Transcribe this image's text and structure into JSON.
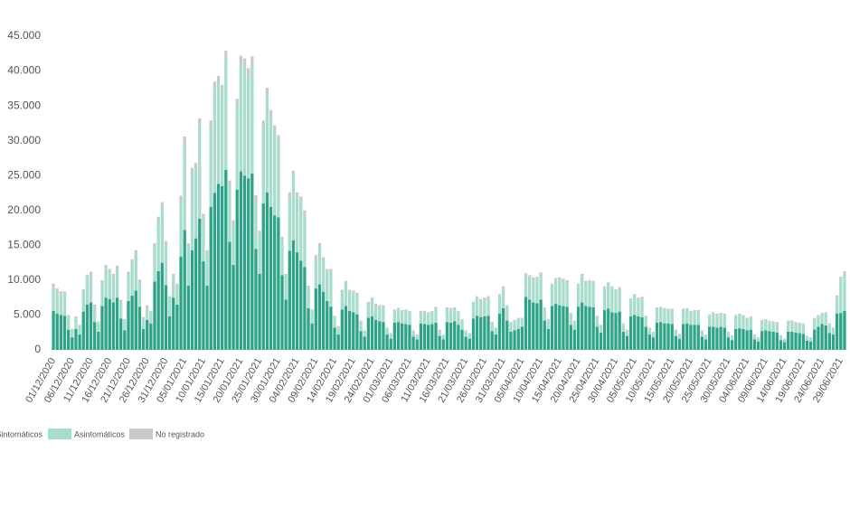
{
  "chart_data": {
    "type": "stacked_bar",
    "categories": [
      "01/12/2020",
      null,
      null,
      null,
      null,
      "06/12/2020",
      null,
      null,
      null,
      null,
      "11/12/2020",
      null,
      null,
      null,
      null,
      "16/12/2020",
      null,
      null,
      null,
      null,
      "21/12/2020",
      null,
      null,
      null,
      null,
      "26/12/2020",
      null,
      null,
      null,
      null,
      "31/12/2020",
      null,
      null,
      null,
      null,
      "05/01/2021",
      null,
      null,
      null,
      null,
      "10/01/2021",
      null,
      null,
      null,
      null,
      "15/01/2021",
      null,
      null,
      null,
      null,
      "20/01/2021",
      null,
      null,
      null,
      null,
      "25/01/2021",
      null,
      null,
      null,
      null,
      "30/01/2021",
      null,
      null,
      null,
      null,
      "04/02/2021",
      null,
      null,
      null,
      null,
      "09/02/2021",
      null,
      null,
      null,
      null,
      "14/02/2021",
      null,
      null,
      null,
      null,
      "19/02/2021",
      null,
      null,
      null,
      null,
      "24/02/2021",
      null,
      null,
      null,
      null,
      "01/03/2021",
      null,
      null,
      null,
      null,
      "06/03/2021",
      null,
      null,
      null,
      null,
      "11/03/2021",
      null,
      null,
      null,
      null,
      "16/03/2021",
      null,
      null,
      null,
      null,
      "21/03/2021",
      null,
      null,
      null,
      null,
      "26/03/2021",
      null,
      null,
      null,
      null,
      "31/03/2021",
      null,
      null,
      null,
      null,
      "05/04/2021",
      null,
      null,
      null,
      null,
      "10/04/2021",
      null,
      null,
      null,
      null,
      "15/04/2021",
      null,
      null,
      null,
      null,
      "20/04/2021",
      null,
      null,
      null,
      null,
      "25/04/2021",
      null,
      null,
      null,
      null,
      "30/04/2021",
      null,
      null,
      null,
      null,
      "05/05/2021",
      null,
      null,
      null,
      null,
      "10/05/2021",
      null,
      null,
      null,
      null,
      "15/05/2021",
      null,
      null,
      null,
      null,
      "20/05/2021",
      null,
      null,
      null,
      null,
      "25/05/2021",
      null,
      null,
      null,
      null,
      "30/05/2021",
      null,
      null,
      null,
      null,
      "04/06/2021",
      null,
      null,
      null,
      null,
      "09/06/2021",
      null,
      null,
      null,
      null,
      "14/06/2021",
      null,
      null,
      null,
      null,
      "19/06/2021",
      null,
      null,
      null,
      null,
      "24/06/2021",
      null,
      null,
      null,
      null,
      "29/06/2021",
      null
    ],
    "series": [
      {
        "name": "Sintomáticos",
        "color": "#2ea387",
        "values": [
          5600,
          5200,
          5000,
          4900,
          2900,
          1800,
          3000,
          2200,
          5500,
          6500,
          6800,
          4000,
          2600,
          6300,
          7500,
          7300,
          6800,
          7500,
          4500,
          2800,
          7000,
          7800,
          8500,
          6200,
          3000,
          4300,
          3800,
          9800,
          11300,
          12500,
          9300,
          4800,
          7500,
          6500,
          13400,
          17200,
          9200,
          14300,
          16000,
          18800,
          12700,
          9200,
          20500,
          22500,
          23800,
          23500,
          25800,
          15500,
          12200,
          23000,
          25600,
          25000,
          24600,
          25300,
          14500,
          10900,
          21000,
          22600,
          20500,
          19300,
          19000,
          10700,
          7200,
          14200,
          15700,
          14000,
          12800,
          11900,
          6000,
          3800,
          8800,
          9400,
          8300,
          7000,
          6200,
          3200,
          2200,
          5800,
          6300,
          5600,
          5400,
          5100,
          2700,
          1900,
          4600,
          4800,
          4300,
          4100,
          4000,
          2200,
          1600,
          3900,
          4000,
          3800,
          3700,
          3600,
          1900,
          1500,
          3800,
          3700,
          3600,
          3700,
          3900,
          2000,
          1500,
          4000,
          3900,
          4100,
          3600,
          2900,
          1900,
          1600,
          4500,
          4900,
          4700,
          4800,
          4900,
          2700,
          2200,
          5200,
          6000,
          4200,
          2600,
          2800,
          3000,
          3300,
          7600,
          7200,
          6800,
          6700,
          7200,
          4200,
          3000,
          6300,
          6600,
          6400,
          6300,
          6200,
          3600,
          2900,
          6200,
          6800,
          6300,
          6200,
          6100,
          3300,
          2500,
          5700,
          5900,
          5400,
          5300,
          5500,
          2600,
          2000,
          4800,
          5000,
          4800,
          4700,
          3300,
          2200,
          1800,
          3900,
          4000,
          3800,
          3800,
          3700,
          2000,
          1600,
          3700,
          3800,
          3600,
          3600,
          3600,
          1900,
          1500,
          3300,
          3300,
          3200,
          3300,
          3200,
          1800,
          1400,
          3000,
          3100,
          3000,
          2800,
          2900,
          1500,
          1200,
          2700,
          2800,
          2700,
          2600,
          2500,
          1400,
          1100,
          2600,
          2600,
          2500,
          2400,
          2300,
          1300,
          1200,
          2900,
          3300,
          3700,
          3500,
          2400,
          2200,
          5200,
          5300,
          5600
        ]
      },
      {
        "name": "Asintomáticos",
        "color": "#a8dccc",
        "values": [
          3400,
          3200,
          3000,
          3100,
          1800,
          1000,
          1500,
          1200,
          2800,
          3800,
          3900,
          2200,
          1300,
          3300,
          4200,
          3800,
          3600,
          4100,
          2400,
          1400,
          3700,
          4700,
          5200,
          3500,
          1500,
          1800,
          1600,
          5000,
          7200,
          8000,
          5700,
          2600,
          3000,
          2700,
          8000,
          12500,
          5600,
          11000,
          10000,
          13500,
          6200,
          4600,
          11500,
          15000,
          14500,
          13500,
          16000,
          8000,
          5800,
          12000,
          15500,
          15700,
          14800,
          15700,
          7000,
          5600,
          11000,
          14000,
          13000,
          12000,
          11000,
          5000,
          3300,
          7800,
          9300,
          8000,
          8600,
          7600,
          2900,
          1800,
          4400,
          5400,
          4600,
          4200,
          5000,
          1500,
          1000,
          2500,
          3200,
          2700,
          2800,
          2800,
          1300,
          800,
          2000,
          2400,
          2000,
          2000,
          2100,
          900,
          700,
          1700,
          1800,
          1700,
          1900,
          1800,
          800,
          600,
          1600,
          1700,
          1600,
          1700,
          2100,
          800,
          600,
          1900,
          1900,
          1800,
          1800,
          1300,
          800,
          700,
          2100,
          2500,
          2300,
          2400,
          2500,
          1100,
          900,
          2500,
          2800,
          2000,
          1200,
          1300,
          1400,
          1100,
          3100,
          3200,
          3300,
          3500,
          3600,
          1700,
          1200,
          2900,
          3400,
          3700,
          3600,
          3500,
          1500,
          1100,
          3000,
          3800,
          3300,
          3500,
          3500,
          1400,
          1000,
          3100,
          3500,
          3400,
          3100,
          3200,
          1000,
          800,
          2300,
          2700,
          2400,
          2600,
          1400,
          900,
          700,
          2000,
          2000,
          2000,
          1900,
          2000,
          800,
          600,
          2000,
          2000,
          1800,
          1900,
          1900,
          800,
          600,
          1600,
          1900,
          1800,
          1800,
          1800,
          700,
          600,
          1800,
          1900,
          1800,
          1600,
          1700,
          600,
          500,
          1400,
          1400,
          1300,
          1300,
          1300,
          600,
          400,
          1400,
          1400,
          1300,
          1300,
          1300,
          600,
          500,
          1500,
          1500,
          1400,
          1700,
          1200,
          900,
          2400,
          4900,
          5400
        ]
      },
      {
        "name": "No registrado",
        "color": "#c9c9c9",
        "values": [
          500,
          400,
          400,
          400,
          300,
          200,
          300,
          200,
          400,
          500,
          500,
          300,
          200,
          400,
          500,
          500,
          500,
          500,
          300,
          200,
          500,
          500,
          600,
          400,
          200,
          300,
          200,
          500,
          600,
          700,
          600,
          300,
          400,
          300,
          700,
          900,
          500,
          800,
          800,
          900,
          600,
          500,
          900,
          1000,
          1000,
          1000,
          1100,
          800,
          600,
          1000,
          1100,
          1100,
          1000,
          1100,
          700,
          600,
          900,
          1000,
          900,
          900,
          800,
          500,
          400,
          600,
          700,
          600,
          600,
          500,
          300,
          200,
          400,
          500,
          400,
          400,
          400,
          200,
          200,
          300,
          400,
          300,
          300,
          300,
          200,
          100,
          300,
          300,
          300,
          300,
          300,
          100,
          100,
          200,
          200,
          200,
          200,
          200,
          100,
          100,
          200,
          200,
          200,
          200,
          200,
          100,
          100,
          200,
          200,
          200,
          200,
          200,
          100,
          100,
          300,
          300,
          300,
          300,
          300,
          200,
          100,
          300,
          300,
          200,
          200,
          200,
          200,
          200,
          300,
          300,
          300,
          300,
          300,
          200,
          200,
          300,
          300,
          300,
          300,
          300,
          200,
          200,
          300,
          300,
          300,
          300,
          300,
          200,
          100,
          300,
          300,
          300,
          300,
          300,
          200,
          100,
          300,
          300,
          300,
          300,
          200,
          100,
          100,
          200,
          200,
          200,
          200,
          200,
          100,
          100,
          200,
          200,
          200,
          200,
          200,
          100,
          100,
          200,
          200,
          200,
          200,
          200,
          100,
          100,
          200,
          200,
          200,
          200,
          200,
          100,
          100,
          200,
          200,
          200,
          200,
          200,
          100,
          100,
          200,
          200,
          200,
          200,
          200,
          100,
          100,
          200,
          200,
          200,
          200,
          200,
          100,
          200,
          300,
          300
        ]
      }
    ],
    "ylim": [
      0,
      45000
    ],
    "yticks": [
      0,
      {
        "value": 5000,
        "label": "5.000"
      },
      {
        "value": 10000,
        "label": "10.000"
      },
      {
        "value": 15000,
        "label": "15.000"
      },
      {
        "value": 20000,
        "label": "20.000"
      },
      {
        "value": 25000,
        "label": "25.000"
      },
      {
        "value": 30000,
        "label": "30.000"
      },
      {
        "value": 35000,
        "label": "35.000"
      },
      {
        "value": 40000,
        "label": "40.000"
      },
      {
        "value": 45000,
        "label": "45.000"
      }
    ],
    "grid": false
  }
}
